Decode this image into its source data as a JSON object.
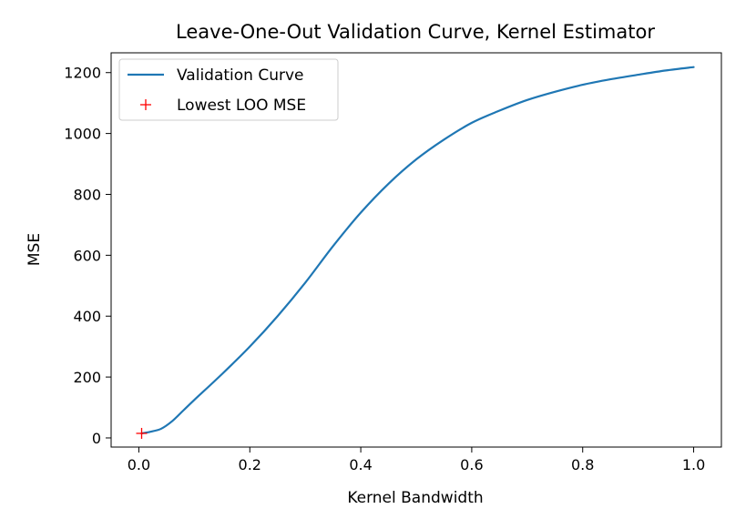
{
  "chart_data": {
    "type": "line",
    "title": "Leave-One-Out Validation Curve, Kernel Estimator",
    "xlabel": "Kernel Bandwidth",
    "ylabel": "MSE",
    "xlim": [
      -0.05,
      1.05
    ],
    "ylim": [
      -30,
      1265
    ],
    "xticks": [
      0.0,
      0.2,
      0.4,
      0.6,
      0.8,
      1.0
    ],
    "xtick_labels": [
      "0.0",
      "0.2",
      "0.4",
      "0.6",
      "0.8",
      "1.0"
    ],
    "yticks": [
      0,
      200,
      400,
      600,
      800,
      1000,
      1200
    ],
    "ytick_labels": [
      "0",
      "200",
      "400",
      "600",
      "800",
      "1000",
      "1200"
    ],
    "grid": false,
    "legend_position": "top-left",
    "series": [
      {
        "name": "Validation Curve",
        "kind": "line",
        "color": "#1f77b4",
        "x": [
          0.005,
          0.02,
          0.04,
          0.06,
          0.08,
          0.1,
          0.15,
          0.2,
          0.25,
          0.3,
          0.35,
          0.4,
          0.45,
          0.5,
          0.55,
          0.6,
          0.65,
          0.7,
          0.75,
          0.8,
          0.85,
          0.9,
          0.95,
          1.0
        ],
        "y": [
          15,
          20,
          30,
          55,
          90,
          125,
          210,
          300,
          400,
          510,
          630,
          740,
          835,
          915,
          980,
          1035,
          1075,
          1110,
          1137,
          1160,
          1178,
          1193,
          1207,
          1218
        ]
      },
      {
        "name": "Lowest LOO MSE",
        "kind": "marker",
        "marker": "+",
        "color": "#ff0000",
        "x": [
          0.005
        ],
        "y": [
          15
        ]
      }
    ]
  }
}
